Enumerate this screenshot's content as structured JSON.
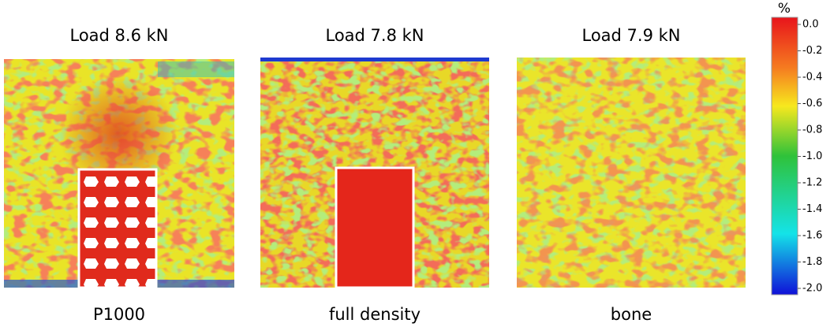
{
  "panels": [
    {
      "title": "Load 8.6 kN",
      "label": "P1000"
    },
    {
      "title": "Load 7.8 kN",
      "label": "full density"
    },
    {
      "title": "Load 7.9 kN",
      "label": "bone"
    }
  ],
  "colorbar": {
    "unit": "%",
    "lim": [
      -2,
      0
    ],
    "ticks": [
      {
        "value": 0,
        "label": "0.0"
      },
      -0.2,
      -0.4,
      -0.6,
      -0.8,
      {
        "value": -1,
        "label": "-1.0"
      },
      -1.2,
      -1.4,
      -1.6,
      -1.8,
      {
        "value": -2,
        "label": "-2.0"
      }
    ]
  }
}
